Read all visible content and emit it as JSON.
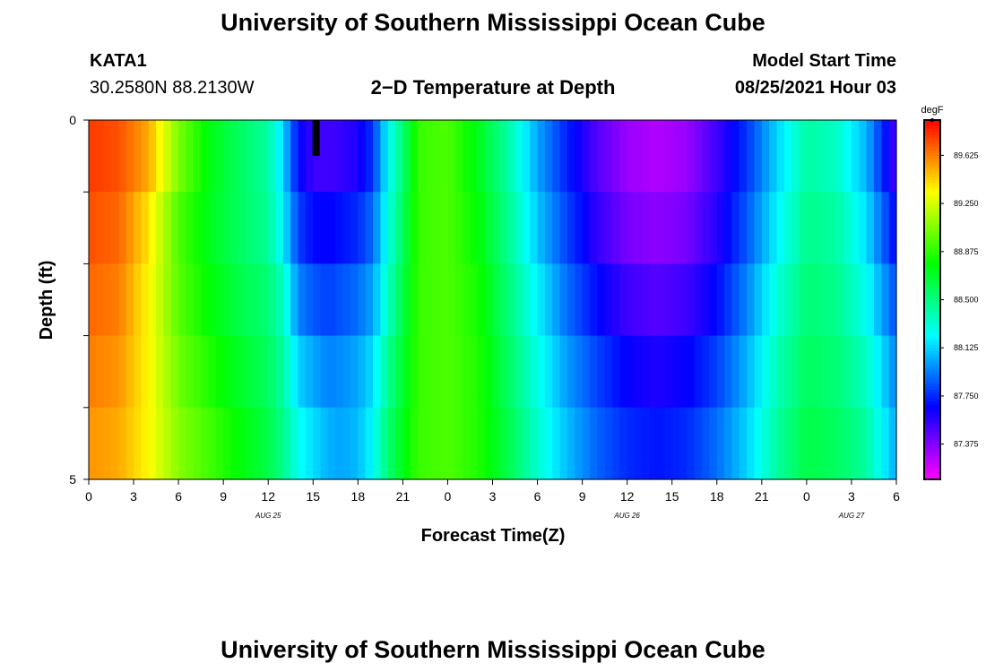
{
  "header": {
    "title": "University of Southern Mississippi Ocean Cube",
    "station": "KATA1",
    "coords": "30.2580N  88.2130W",
    "plot_title": "2−D Temperature at Depth",
    "model_label": "Model Start Time",
    "model_time": "08/25/2021 Hour 03"
  },
  "footer": {
    "title": "University of Southern Mississippi Ocean Cube"
  },
  "chart_data": {
    "type": "heatmap",
    "title": "2−D Temperature at Depth",
    "xlabel": "Forecast Time(Z)",
    "ylabel": "Depth (ft)",
    "x_tick_labels": [
      "0",
      "3",
      "6",
      "9",
      "12",
      "15",
      "18",
      "21",
      "0",
      "3",
      "6",
      "9",
      "12",
      "15",
      "18",
      "21",
      "0",
      "3",
      "6"
    ],
    "date_labels": [
      {
        "label": "AUG 25",
        "at_hour": 12
      },
      {
        "label": "AUG 26",
        "at_hour": 36
      },
      {
        "label": "AUG 27",
        "at_hour": 51
      }
    ],
    "y_tick_labels": [
      "0",
      "5"
    ],
    "ylim": [
      0,
      5
    ],
    "xlim": [
      0,
      54
    ],
    "colorbar": {
      "unit": "degF",
      "ticks": [
        "89.625",
        "89.250",
        "88.875",
        "88.500",
        "88.125",
        "87.750",
        "87.375"
      ],
      "tick_values": [
        89.625,
        89.25,
        88.875,
        88.5,
        88.125,
        87.75,
        87.375
      ],
      "range": [
        87.1,
        89.9
      ]
    },
    "depths_ft": [
      0,
      1,
      2,
      3,
      4,
      5
    ],
    "hours": [
      0,
      2,
      4,
      6,
      8,
      10,
      12,
      13,
      14,
      15,
      16,
      17,
      18,
      19,
      20,
      21,
      22,
      24,
      26,
      28,
      30,
      32,
      34,
      36,
      38,
      40,
      42,
      44,
      46,
      48,
      50,
      52,
      53,
      54
    ],
    "values_degF": [
      [
        89.8,
        89.75,
        89.6,
        89.15,
        88.8,
        88.6,
        88.45,
        88.15,
        87.6,
        87.45,
        87.45,
        87.45,
        87.5,
        87.7,
        88.2,
        88.5,
        88.9,
        88.95,
        88.7,
        88.4,
        88.0,
        87.7,
        87.45,
        87.3,
        87.25,
        87.3,
        87.5,
        87.75,
        88.1,
        88.4,
        88.3,
        88.0,
        87.7,
        87.4
      ],
      [
        89.75,
        89.7,
        89.45,
        88.95,
        88.7,
        88.55,
        88.4,
        88.1,
        87.75,
        87.6,
        87.6,
        87.65,
        87.7,
        87.85,
        88.25,
        88.55,
        88.9,
        88.95,
        88.75,
        88.45,
        88.05,
        87.75,
        87.5,
        87.35,
        87.3,
        87.35,
        87.55,
        87.8,
        88.15,
        88.45,
        88.4,
        88.1,
        87.85,
        87.55
      ],
      [
        89.7,
        89.65,
        89.35,
        88.95,
        88.75,
        88.6,
        88.5,
        88.3,
        87.85,
        87.75,
        87.7,
        87.75,
        87.8,
        87.95,
        88.3,
        88.6,
        88.9,
        88.95,
        88.8,
        88.5,
        88.15,
        87.85,
        87.6,
        87.45,
        87.4,
        87.45,
        87.6,
        87.9,
        88.25,
        88.5,
        88.45,
        88.2,
        87.95,
        87.75
      ],
      [
        89.65,
        89.6,
        89.35,
        89.0,
        88.8,
        88.65,
        88.55,
        88.4,
        88.05,
        87.95,
        87.9,
        87.95,
        88.0,
        88.1,
        88.4,
        88.65,
        88.9,
        88.95,
        88.85,
        88.55,
        88.25,
        87.95,
        87.75,
        87.6,
        87.55,
        87.6,
        87.75,
        88.0,
        88.35,
        88.55,
        88.5,
        88.3,
        88.1,
        87.9
      ],
      [
        89.6,
        89.55,
        89.35,
        89.05,
        88.9,
        88.75,
        88.6,
        88.45,
        88.2,
        88.1,
        88.0,
        88.0,
        88.05,
        88.2,
        88.5,
        88.7,
        88.9,
        88.95,
        88.85,
        88.6,
        88.3,
        88.05,
        87.85,
        87.7,
        87.65,
        87.7,
        87.85,
        88.1,
        88.4,
        88.6,
        88.55,
        88.4,
        88.2,
        88.0
      ],
      [
        89.55,
        89.5,
        89.35,
        89.1,
        88.95,
        88.8,
        88.65,
        88.5,
        88.3,
        88.2,
        88.1,
        88.05,
        88.1,
        88.25,
        88.55,
        88.75,
        88.9,
        88.95,
        88.85,
        88.65,
        88.35,
        88.1,
        87.9,
        87.8,
        87.75,
        87.8,
        87.95,
        88.15,
        88.45,
        88.65,
        88.6,
        88.45,
        88.25,
        88.05
      ]
    ],
    "marker": {
      "hour": 15.2,
      "depth_from": 0,
      "depth_to": 0.5
    }
  }
}
